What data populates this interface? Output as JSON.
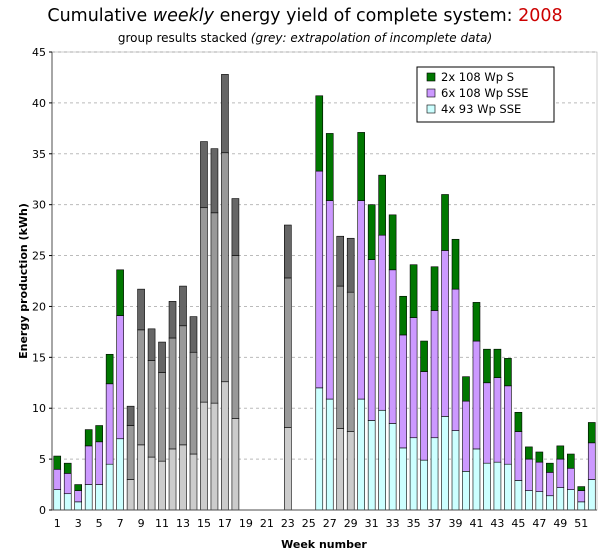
{
  "title": {
    "prefix": "Cumulative ",
    "italic": "weekly",
    "mid": " energy yield of complete system: ",
    "year": "2008",
    "year_color": "#cc0000"
  },
  "subtitle": {
    "plain": "group results stacked ",
    "italic": "(grey: extrapolation of incomplete data)"
  },
  "chart_data": {
    "type": "bar",
    "stacked": true,
    "xlabel": "Week number",
    "ylabel": "Energy production (kWh)",
    "ylim": [
      0,
      45
    ],
    "yticks": [
      0,
      5,
      10,
      15,
      20,
      25,
      30,
      35,
      40,
      45
    ],
    "xticks": [
      1,
      3,
      5,
      7,
      9,
      11,
      13,
      15,
      17,
      19,
      21,
      23,
      25,
      27,
      29,
      31,
      33,
      35,
      37,
      39,
      41,
      43,
      45,
      47,
      49,
      51
    ],
    "grid": "horizontal dashed",
    "legend_position": "top-right",
    "categories": [
      1,
      2,
      3,
      4,
      5,
      6,
      7,
      8,
      9,
      10,
      11,
      12,
      13,
      14,
      15,
      16,
      17,
      18,
      19,
      20,
      21,
      22,
      23,
      24,
      25,
      26,
      27,
      28,
      29,
      30,
      31,
      32,
      33,
      34,
      35,
      36,
      37,
      38,
      39,
      40,
      41,
      42,
      43,
      44,
      45,
      46,
      47,
      48,
      49,
      50,
      51,
      52
    ],
    "series": [
      {
        "name": "4x 93 Wp SSE",
        "color": "#ccffff",
        "values": [
          2.0,
          1.6,
          0.8,
          2.5,
          2.5,
          4.5,
          7.0,
          3.0,
          6.4,
          5.2,
          4.8,
          6.0,
          6.4,
          5.5,
          10.6,
          10.5,
          12.6,
          9.0,
          null,
          null,
          null,
          null,
          8.1,
          null,
          null,
          12.0,
          10.9,
          8.0,
          7.7,
          10.9,
          8.8,
          9.8,
          8.5,
          6.1,
          7.1,
          4.9,
          7.1,
          9.2,
          7.8,
          3.8,
          6.0,
          4.6,
          4.7,
          4.5,
          2.9,
          1.9,
          1.8,
          1.4,
          2.2,
          2.0,
          0.8,
          3.0
        ]
      },
      {
        "name": "6x 108 Wp SSE",
        "color": "#cc99ff",
        "values": [
          2.0,
          2.0,
          1.1,
          3.8,
          4.2,
          7.9,
          12.1,
          5.3,
          11.3,
          9.5,
          8.7,
          10.9,
          11.7,
          10.0,
          19.1,
          18.7,
          22.5,
          16.0,
          null,
          null,
          null,
          null,
          14.7,
          null,
          null,
          21.3,
          19.5,
          14.0,
          13.7,
          19.5,
          15.8,
          17.2,
          15.1,
          11.1,
          11.8,
          8.7,
          12.5,
          16.3,
          13.9,
          6.9,
          10.6,
          7.9,
          8.3,
          7.7,
          4.8,
          3.1,
          2.9,
          2.3,
          2.8,
          2.1,
          1.1,
          3.6
        ]
      },
      {
        "name": "2x 108 Wp S",
        "color": "#007700",
        "values": [
          1.3,
          1.0,
          0.6,
          1.6,
          1.6,
          2.9,
          4.5,
          1.9,
          4.0,
          3.1,
          3.0,
          3.6,
          3.9,
          3.5,
          6.5,
          6.3,
          7.7,
          5.6,
          null,
          null,
          null,
          null,
          5.2,
          null,
          null,
          7.4,
          6.6,
          4.9,
          5.3,
          6.7,
          5.4,
          5.9,
          5.4,
          3.8,
          5.2,
          3.0,
          4.3,
          5.5,
          4.9,
          2.4,
          3.8,
          3.3,
          2.8,
          2.7,
          1.9,
          1.2,
          1.0,
          0.9,
          1.3,
          1.4,
          0.4,
          2.0
        ]
      }
    ],
    "extrapolated_weeks": [
      8,
      9,
      10,
      11,
      12,
      13,
      14,
      15,
      16,
      17,
      18,
      23,
      28,
      29
    ],
    "extrapolated_colors": {
      "bottom": "#cccccc",
      "middle": "#999999",
      "top": "#666666"
    }
  }
}
